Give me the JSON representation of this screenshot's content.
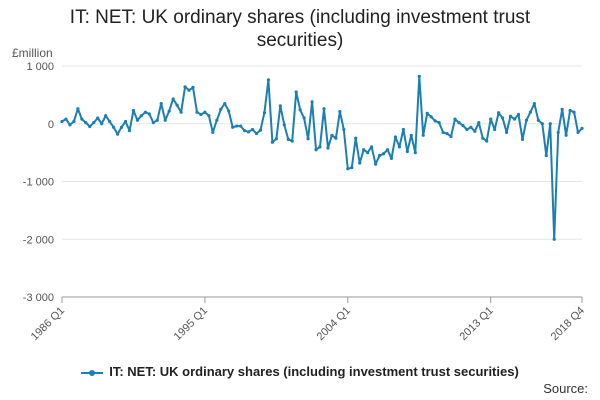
{
  "title": "IT: NET: UK ordinary shares (including investment trust securities)",
  "source_label": "Source:",
  "chart_data": {
    "type": "line",
    "ylabel": "£million",
    "ylim": [
      -3000,
      1000
    ],
    "y_ticks": [
      {
        "value": 1000,
        "label": "1 000"
      },
      {
        "value": 0,
        "label": "0"
      },
      {
        "value": -1000,
        "label": "-1 000"
      },
      {
        "value": -2000,
        "label": "-2 000"
      },
      {
        "value": -3000,
        "label": "-3 000"
      }
    ],
    "x_tick_labels": [
      "1986 Q1",
      "1995 Q1",
      "2004 Q1",
      "2013 Q1",
      "2018 Q4"
    ],
    "x_tick_positions": [
      0,
      36,
      72,
      108,
      131
    ],
    "grid": "horizontal",
    "legend_position": "bottom",
    "color": "#1a7fb5",
    "series": [
      {
        "name": "IT: NET: UK ordinary shares (including investment trust securities)",
        "x_start": "1986 Q1",
        "x_end": "2018 Q4",
        "values": [
          40,
          80,
          -20,
          40,
          260,
          80,
          20,
          -50,
          20,
          100,
          0,
          140,
          40,
          -60,
          -180,
          -60,
          40,
          -120,
          230,
          60,
          140,
          200,
          170,
          20,
          60,
          350,
          60,
          220,
          430,
          320,
          200,
          640,
          580,
          630,
          200,
          160,
          200,
          140,
          -150,
          60,
          250,
          350,
          220,
          -60,
          -40,
          -40,
          -120,
          -140,
          -100,
          -170,
          -110,
          190,
          760,
          -320,
          -260,
          310,
          -20,
          -270,
          -300,
          550,
          240,
          100,
          -260,
          380,
          -450,
          -400,
          260,
          -420,
          -200,
          -250,
          210,
          -100,
          -780,
          -760,
          -250,
          -680,
          -450,
          -500,
          -400,
          -700,
          -550,
          -520,
          -450,
          -600,
          -230,
          -400,
          -100,
          -480,
          -200,
          -500,
          820,
          -200,
          180,
          120,
          50,
          20,
          -150,
          -170,
          -220,
          80,
          20,
          -30,
          -100,
          -60,
          -130,
          20,
          -250,
          -300,
          80,
          -100,
          190,
          100,
          -150,
          130,
          80,
          160,
          -270,
          60,
          200,
          350,
          60,
          0,
          -550,
          0,
          -2000,
          -150,
          250,
          -200,
          230,
          200,
          -150,
          -80
        ]
      }
    ]
  }
}
